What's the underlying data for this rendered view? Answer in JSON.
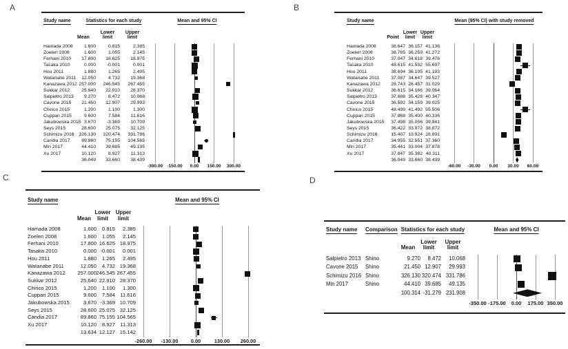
{
  "figure": {
    "panel_labels": {
      "a": "A",
      "b": "B",
      "c": "C",
      "d": "D"
    },
    "colors": {
      "marker": "#111111",
      "text": "#151515",
      "gridline": "#9b9b9b",
      "zero_line": "#4f4f4f",
      "rule": "#1f1f1f",
      "background": "#ffffff"
    }
  },
  "chart_data": [
    {
      "id": "A",
      "type": "forest",
      "study_col_header": "Study name",
      "stats_title": "Statistics for each study",
      "plot_title": "Mean and 95% CI",
      "col_headers": [
        "Mean",
        "Lower limit",
        "Upper limit"
      ],
      "axis": {
        "min": -300,
        "max": 300,
        "ticks": [
          "-300.00",
          "-150.00",
          "0.00",
          "150.00",
          "300.00"
        ]
      },
      "rows": [
        {
          "study": "Hamada 2008",
          "mean": 1.6,
          "lower": 0.815,
          "upper": 2.385,
          "w": 8
        },
        {
          "study": "Zoelen 2008",
          "mean": 1.6,
          "lower": 1.055,
          "upper": 2.145,
          "w": 8
        },
        {
          "study": "Ferhani 2010",
          "mean": 17.8,
          "lower": 16.625,
          "upper": 18.975,
          "w": 8
        },
        {
          "study": "Tasaka 2010",
          "mean": 0.0,
          "lower": -0.001,
          "upper": 0.001,
          "w": 9
        },
        {
          "study": "Hou 2011",
          "mean": 1.88,
          "lower": 1.265,
          "upper": 2.495,
          "w": 8
        },
        {
          "study": "Watanabe 2011",
          "mean": 12.05,
          "lower": 4.732,
          "upper": 19.368,
          "w": 5
        },
        {
          "study": "Kanazawa 2012",
          "mean": 257.0,
          "lower": 246.545,
          "upper": 267.455,
          "w": 6
        },
        {
          "study": "Sukkar 2012",
          "mean": 25.64,
          "lower": 22.91,
          "upper": 28.37,
          "w": 7
        },
        {
          "study": "Salpietro 2013",
          "mean": 9.27,
          "lower": 8.472,
          "upper": 10.068,
          "w": 9
        },
        {
          "study": "Cavone 2015",
          "mean": 21.45,
          "lower": 12.907,
          "upper": 29.993,
          "w": 5
        },
        {
          "study": "Chirico 2015",
          "mean": 1.2,
          "lower": 1.1,
          "upper": 1.3,
          "w": 9
        },
        {
          "study": "Cuppari 2015",
          "mean": 9.6,
          "lower": 7.584,
          "upper": 11.616,
          "w": 8
        },
        {
          "study": "Jakubowska 2015",
          "mean": 3.67,
          "lower": -3.369,
          "upper": 10.709,
          "w": 5
        },
        {
          "study": "Seys 2015",
          "mean": 28.6,
          "lower": 25.075,
          "upper": 32.125,
          "w": 8
        },
        {
          "study": "Schimizu 2016",
          "mean": 326.13,
          "lower": 320.474,
          "upper": 331.786,
          "w": 8
        },
        {
          "study": "Candia 2017",
          "mean": 89.86,
          "lower": 75.155,
          "upper": 104.565,
          "w": 5,
          "round": true
        },
        {
          "study": "Min 2017",
          "mean": 44.41,
          "lower": 39.685,
          "upper": 49.135,
          "w": 7
        },
        {
          "study": "Xu 2017",
          "mean": 10.12,
          "lower": 8.927,
          "upper": 11.313,
          "w": 9
        }
      ],
      "summary": {
        "mean": 36.049,
        "lower": 33.66,
        "upper": 38.439
      }
    },
    {
      "id": "B",
      "type": "forest",
      "study_col_header": "Study name",
      "plot_title": "Mean (95% CI) with study removed",
      "col_headers": [
        "Point",
        "Lower limit",
        "Upper limit"
      ],
      "axis": {
        "min": -60,
        "max": 60,
        "ticks": [
          "-60.00",
          "-30.00",
          "0.00",
          "30.00",
          "60.00"
        ]
      },
      "rows": [
        {
          "study": "Hamada 2008",
          "mean": 38.647,
          "lower": 36.157,
          "upper": 41.136,
          "w": 8
        },
        {
          "study": "Zoelen 2008",
          "mean": 38.765,
          "lower": 36.259,
          "upper": 41.272,
          "w": 8
        },
        {
          "study": "Ferhani 2010",
          "mean": 37.047,
          "lower": 34.618,
          "upper": 39.476,
          "w": 8
        },
        {
          "study": "Tasaka 2010",
          "mean": 48.615,
          "lower": 41.532,
          "upper": 55.697,
          "w": 8
        },
        {
          "study": "Hou 2011",
          "mean": 38.694,
          "lower": 36.195,
          "upper": 41.193,
          "w": 8
        },
        {
          "study": "Watanabe 2011",
          "mean": 37.087,
          "lower": 34.647,
          "upper": 39.527,
          "w": 8
        },
        {
          "study": "Kanazawa 2012",
          "mean": 28.743,
          "lower": 26.457,
          "upper": 31.029,
          "w": 8
        },
        {
          "study": "Sukkar 2012",
          "mean": 36.615,
          "lower": 34.166,
          "upper": 39.064,
          "w": 8
        },
        {
          "study": "Salpietro 2013",
          "mean": 37.888,
          "lower": 35.428,
          "upper": 40.347,
          "w": 8
        },
        {
          "study": "Cavone 2015",
          "mean": 36.592,
          "lower": 34.159,
          "upper": 39.025,
          "w": 8
        },
        {
          "study": "Chirico 2015",
          "mean": 48.499,
          "lower": 41.492,
          "upper": 55.506,
          "w": 8
        },
        {
          "study": "Cuppari 2015",
          "mean": 37.868,
          "lower": 35.4,
          "upper": 40.336,
          "w": 8
        },
        {
          "study": "Jakubowska 2015",
          "mean": 37.498,
          "lower": 35.056,
          "upper": 39.941,
          "w": 8
        },
        {
          "study": "Seys 2015",
          "mean": 36.422,
          "lower": 33.972,
          "upper": 38.872,
          "w": 8
        },
        {
          "study": "Schimizu 2016",
          "mean": 15.407,
          "lower": 13.924,
          "upper": 16.891,
          "w": 8
        },
        {
          "study": "Candia 2017",
          "mean": 34.955,
          "lower": 32.551,
          "upper": 37.36,
          "w": 8
        },
        {
          "study": "Min 2017",
          "mean": 35.441,
          "lower": 33.004,
          "upper": 37.878,
          "w": 8
        },
        {
          "study": "Xu 2017",
          "mean": 37.847,
          "lower": 35.382,
          "upper": 40.311,
          "w": 8
        }
      ],
      "summary": {
        "mean": 36.049,
        "lower": 33.66,
        "upper": 38.439
      }
    },
    {
      "id": "C",
      "type": "forest",
      "study_col_header": "Study name",
      "plot_title": "Mean and 95% CI",
      "col_headers": [
        "Mean",
        "Lower limit",
        "Upper limit"
      ],
      "axis": {
        "min": -260,
        "max": 260,
        "ticks": [
          "-260.00",
          "-130.00",
          "0.00",
          "130.00",
          "260.00"
        ]
      },
      "rows": [
        {
          "study": "Hamada 2008",
          "mean": 1.6,
          "lower": 0.815,
          "upper": 2.385,
          "w": 8
        },
        {
          "study": "Zoelen 2008",
          "mean": 1.6,
          "lower": 1.055,
          "upper": 2.145,
          "w": 8
        },
        {
          "study": "Ferhani 2010",
          "mean": 17.8,
          "lower": 16.625,
          "upper": 18.975,
          "w": 8
        },
        {
          "study": "Tasaka 2010",
          "mean": 0.0,
          "lower": -0.001,
          "upper": 0.001,
          "w": 9
        },
        {
          "study": "Hou 2011",
          "mean": 1.88,
          "lower": 1.265,
          "upper": 2.495,
          "w": 8
        },
        {
          "study": "Watanabe 2011",
          "mean": 12.05,
          "lower": 4.732,
          "upper": 19.368,
          "w": 6
        },
        {
          "study": "Kanazawa 2012",
          "mean": 257.0,
          "lower": 246.545,
          "upper": 267.455,
          "w": 8
        },
        {
          "study": "Sukkar 2012",
          "mean": 25.64,
          "lower": 22.91,
          "upper": 28.37,
          "w": 8
        },
        {
          "study": "Chirico 2015",
          "mean": 1.2,
          "lower": 1.1,
          "upper": 1.3,
          "w": 9
        },
        {
          "study": "Cuppari 2015",
          "mean": 9.6,
          "lower": 7.584,
          "upper": 11.616,
          "w": 8
        },
        {
          "study": "Jakubowska 2015",
          "mean": 3.67,
          "lower": -3.369,
          "upper": 10.709,
          "w": 6
        },
        {
          "study": "Seys 2015",
          "mean": 28.6,
          "lower": 25.075,
          "upper": 32.125,
          "w": 8
        },
        {
          "study": "Candia 2017",
          "mean": 89.86,
          "lower": 75.155,
          "upper": 104.565,
          "w": 6
        },
        {
          "study": "Xu 2017",
          "mean": 10.12,
          "lower": 8.927,
          "upper": 11.313,
          "w": 9
        }
      ],
      "summary": {
        "mean": 13.634,
        "lower": 12.127,
        "upper": 15.142
      }
    },
    {
      "id": "D",
      "type": "forest",
      "study_col_header": "Study name",
      "comparison_header": "Comparison",
      "stats_title": "Statistics for each study",
      "plot_title": "Mean and 95% CI",
      "col_headers": [
        "Mean",
        "Lower limit",
        "Upper limit"
      ],
      "axis": {
        "min": -350,
        "max": 350,
        "ticks": [
          "-350.00",
          "-175.00",
          "0.00",
          "175.00",
          "350.00"
        ]
      },
      "rows": [
        {
          "study": "Salpietro 2013",
          "comparison": "Shino",
          "mean": 9.27,
          "lower": 8.472,
          "upper": 10.068,
          "w": 10
        },
        {
          "study": "Cavone 2015",
          "comparison": "Shino",
          "mean": 21.45,
          "lower": 12.907,
          "upper": 29.993,
          "w": 10
        },
        {
          "study": "Schimizu 2016",
          "comparison": "Shino",
          "mean": 326.13,
          "lower": 320.474,
          "upper": 331.786,
          "w": 12
        },
        {
          "study": "Min 2017",
          "comparison": "Shino",
          "mean": 44.41,
          "lower": 39.685,
          "upper": 49.135,
          "w": 10
        }
      ],
      "summary": {
        "mean": 100.314,
        "lower": -31.279,
        "upper": 231.908
      }
    }
  ]
}
